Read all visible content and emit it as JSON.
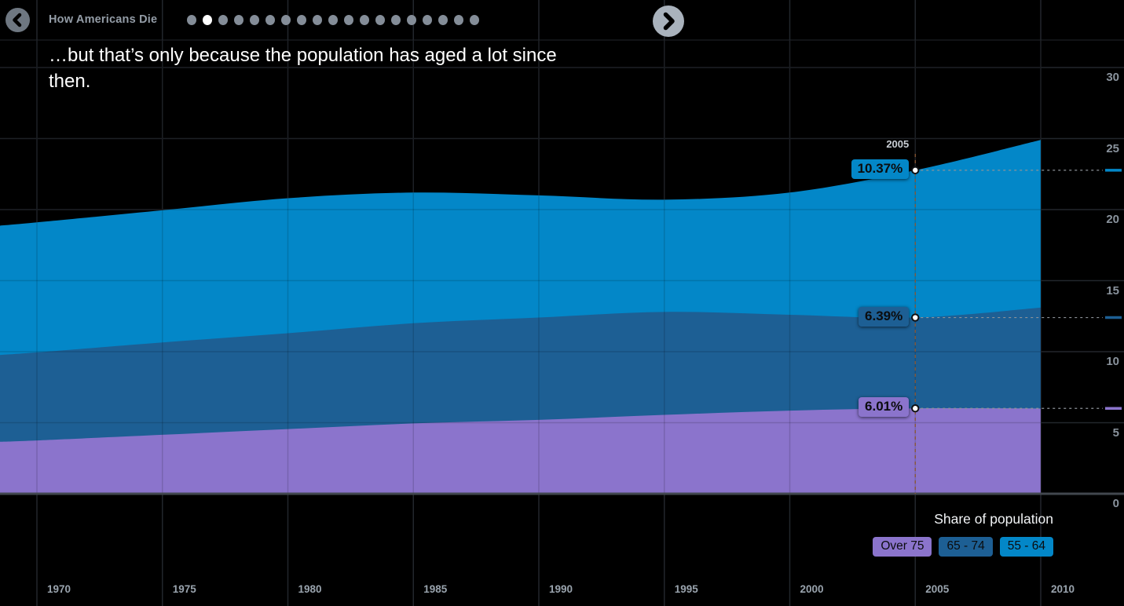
{
  "header": {
    "title": "How Americans Die",
    "back_label": "Previous slide",
    "next_label": "Next slide",
    "progress": {
      "count": 19,
      "active_index": 1
    }
  },
  "subtitle": "…but that’s only because the population has aged a lot since then.",
  "chart_data": {
    "type": "area",
    "stacked": true,
    "title": "",
    "xlabel": "",
    "ylabel": "",
    "x": [
      1968.4,
      1970,
      1975,
      1980,
      1985,
      1990,
      1995,
      2000,
      2005,
      2010
    ],
    "series": [
      {
        "name": "Over 75",
        "color": "#8b74cc",
        "values": [
          3.65,
          3.75,
          4.15,
          4.55,
          4.95,
          5.2,
          5.55,
          5.85,
          6.01,
          6.0
        ]
      },
      {
        "name": "65 - 74",
        "color": "#1d5f94",
        "values": [
          6.1,
          6.2,
          6.5,
          6.75,
          7.05,
          7.2,
          7.25,
          6.75,
          6.39,
          7.1
        ]
      },
      {
        "name": "55 - 64",
        "color": "#0387c8",
        "values": [
          9.1,
          9.15,
          9.3,
          9.5,
          9.2,
          8.6,
          7.9,
          8.6,
          10.37,
          11.8
        ]
      }
    ],
    "x_ticks": [
      1970,
      1975,
      1980,
      1985,
      1990,
      1995,
      2000,
      2005,
      2010
    ],
    "y_ticks": [
      0,
      5,
      10,
      15,
      20,
      25,
      30
    ],
    "xlim": [
      1968.4,
      2013.3
    ],
    "ylim": [
      0,
      32
    ],
    "grid": true,
    "cursor": {
      "year": 2005,
      "year_label": "2005",
      "values": [
        {
          "series": "55 - 64",
          "label": "10.37%"
        },
        {
          "series": "65 - 74",
          "label": "6.39%"
        },
        {
          "series": "Over 75",
          "label": "6.01%"
        }
      ]
    },
    "legend": {
      "title": "Share of population",
      "position": "bottom-right",
      "items": [
        "Over 75",
        "65 - 74",
        "55 - 64"
      ]
    }
  },
  "colors": {
    "background": "#000000",
    "grid": "#22262c",
    "grid_over_area": "rgba(0,0,0,0.14)",
    "zero_line": "#42474e",
    "axis_text": "#8a939d",
    "cursor_dash_h": "#8d9399",
    "cursor_dash_v": "#8a5632",
    "point_fill": "#ffffff",
    "point_ring": "#0e1013",
    "pill_text": "#0b0c0e",
    "subtitle_text": "#ffffff",
    "title_text": "#949da7",
    "dot_inactive": "#848d98",
    "dot_active": "#ffffff"
  }
}
